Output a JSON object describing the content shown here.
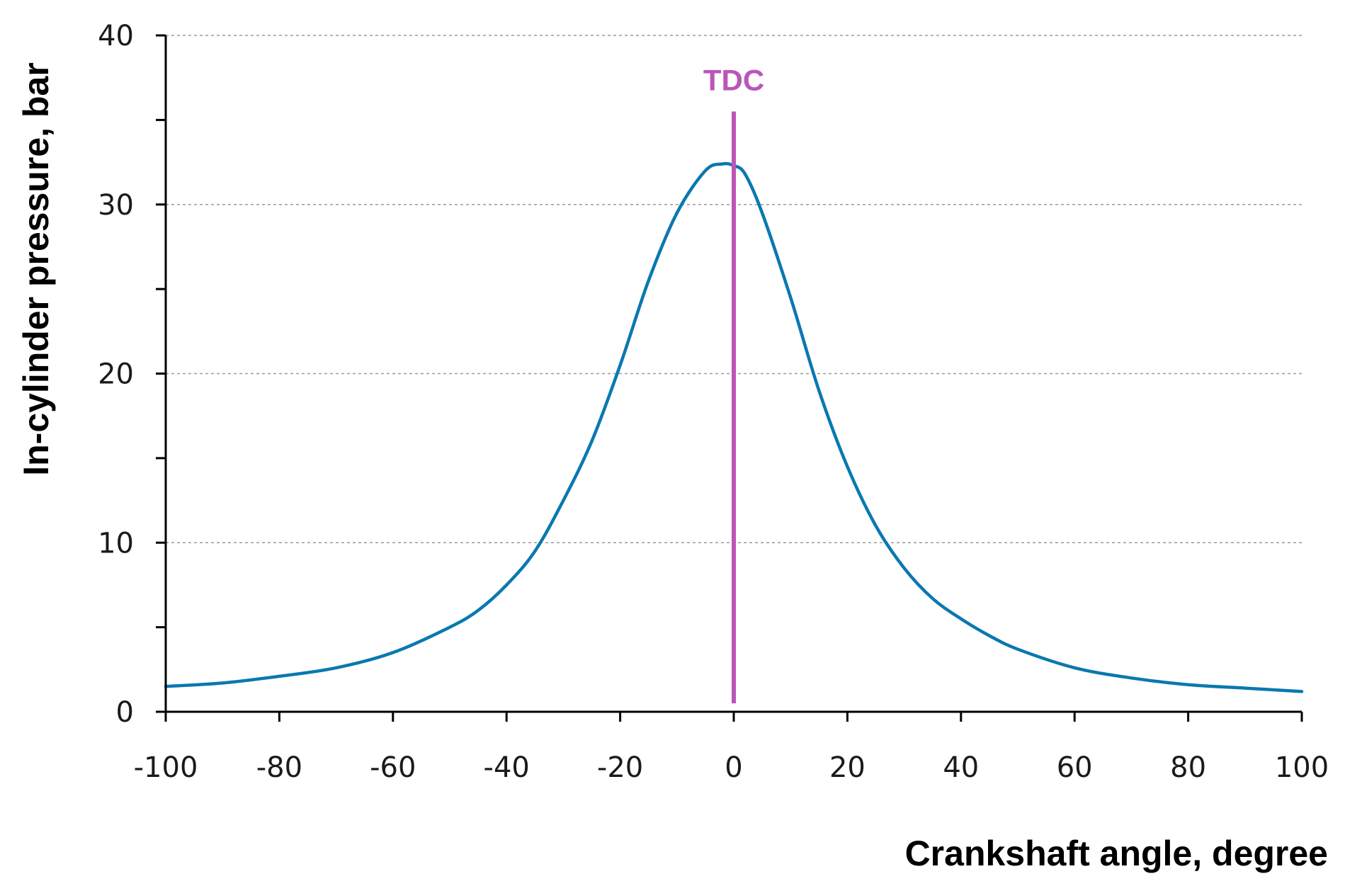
{
  "chart_data": {
    "type": "line",
    "title": "",
    "xlabel": "Crankshaft  angle, degree",
    "ylabel": "In-cylinder pressure, bar",
    "xlim": [
      -100,
      100
    ],
    "ylim": [
      0,
      40
    ],
    "xticks": [
      -100,
      -80,
      -60,
      -40,
      -20,
      0,
      20,
      40,
      60,
      80,
      100
    ],
    "yticks": [
      0,
      10,
      20,
      30,
      40
    ],
    "grid": "horizontal dotted",
    "legend": "none",
    "colors": {
      "series": "#0a78b0",
      "marker": "#bb55b8",
      "axis": "#000000",
      "grid": "#9a9a9a"
    },
    "series": [
      {
        "name": "In-cylinder pressure",
        "x": [
          -100,
          -90,
          -80,
          -70,
          -60,
          -50,
          -45,
          -40,
          -35,
          -30,
          -25,
          -20,
          -15,
          -10,
          -5,
          -2,
          0,
          2,
          5,
          10,
          15,
          20,
          25,
          30,
          35,
          40,
          45,
          50,
          60,
          70,
          80,
          90,
          100
        ],
        "y": [
          1.5,
          1.7,
          2.1,
          2.6,
          3.5,
          5.0,
          6.0,
          7.5,
          9.5,
          12.5,
          16.0,
          20.5,
          25.5,
          29.5,
          32.0,
          32.4,
          32.3,
          31.8,
          29.5,
          24.5,
          19.0,
          14.5,
          11.0,
          8.5,
          6.7,
          5.5,
          4.5,
          3.7,
          2.6,
          2.0,
          1.6,
          1.4,
          1.2
        ]
      }
    ],
    "annotations": [
      {
        "type": "vline",
        "x": 0,
        "y_range": [
          0.5,
          35.5
        ],
        "label": "TDC"
      }
    ]
  }
}
